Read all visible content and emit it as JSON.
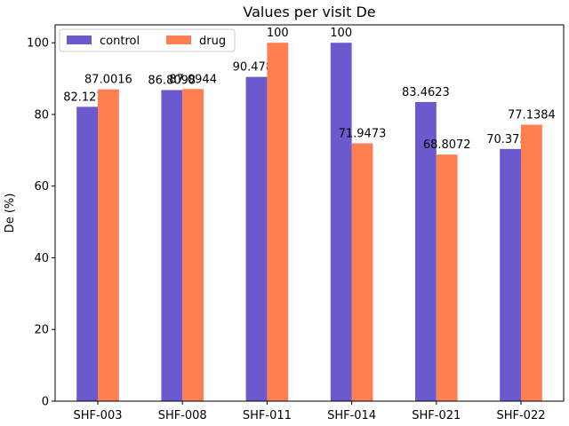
{
  "chart_data": {
    "type": "bar",
    "title": "Values per visit De",
    "xlabel": "",
    "ylabel": "De (%)",
    "ylim": [
      0,
      105
    ],
    "yticks": [
      0,
      20,
      40,
      60,
      80,
      100
    ],
    "categories": [
      "SHF-003",
      "SHF-008",
      "SHF-011",
      "SHF-014",
      "SHF-021",
      "SHF-022"
    ],
    "series": [
      {
        "name": "control",
        "color": "#6a5acd",
        "values": [
          82.1276,
          86.8098,
          90.4782,
          100,
          83.4623,
          70.3757
        ],
        "labels": [
          "82.1276",
          "86.8098",
          "90.4782",
          "100",
          "83.4623",
          "70.3757"
        ]
      },
      {
        "name": "drug",
        "color": "#ff7f50",
        "values": [
          87.0016,
          87.0944,
          100,
          71.9473,
          68.8072,
          77.1384
        ],
        "labels": [
          "87.0016",
          "87.0944",
          "100",
          "71.9473",
          "68.8072",
          "77.1384"
        ]
      }
    ],
    "legend": "top-left",
    "grid": false
  }
}
